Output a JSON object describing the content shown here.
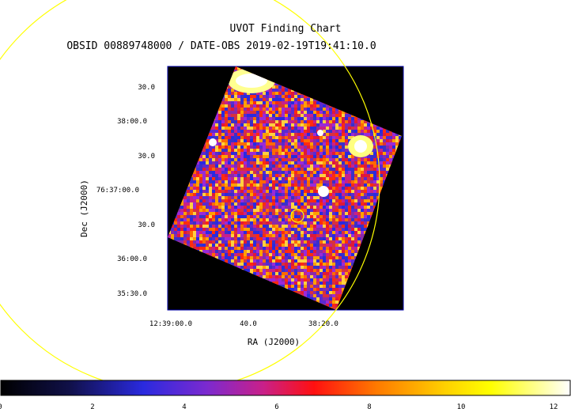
{
  "title": "UVOT Finding Chart",
  "subtitle": "OBSID 00889748000 / DATE-OBS 2019-02-19T19:41:10.0",
  "axes": {
    "xlabel": "RA (J2000)",
    "ylabel": "Dec (J2000)",
    "y_ticks": [
      "30.0",
      "38:00.0",
      "30.0",
      "76:37:00.0",
      "30.0",
      "36:00.0",
      "35:30.0"
    ],
    "x_ticks": [
      "12:39:00.0",
      "40.0",
      "38:20.0"
    ]
  },
  "colorbar": {
    "ticks": [
      "0",
      "2",
      "4",
      "6",
      "8",
      "10",
      "12"
    ],
    "range": [
      0,
      12.3
    ]
  },
  "colors": {
    "frame": "#0000aa",
    "circle": "#ffff00",
    "background": "#000000"
  }
}
